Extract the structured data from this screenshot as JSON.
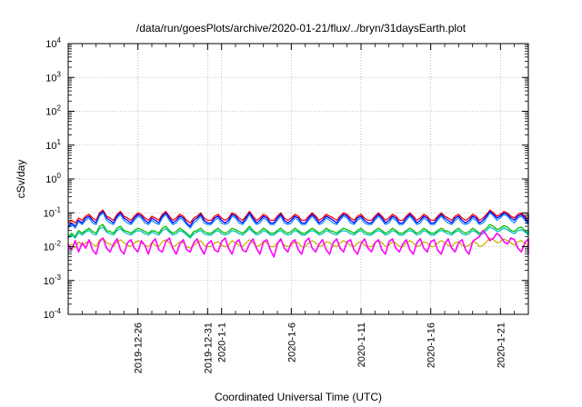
{
  "chart_data": {
    "type": "line",
    "title": "/data/run/goesPlots/archive/2020-01-21/flux/../bryn/31daysEarth.plot",
    "xlabel": "Coordinated Universal Time (UTC)",
    "ylabel": "cSv/day",
    "y_scale": "log",
    "ylim": [
      0.0001,
      10000
    ],
    "xlim": [
      "2019-12-21",
      "2020-01-23"
    ],
    "grid": true,
    "legend": "none",
    "y_ticks": [
      {
        "value": 0.0001,
        "base": "10",
        "exp": "-4"
      },
      {
        "value": 0.001,
        "base": "10",
        "exp": "-3"
      },
      {
        "value": 0.01,
        "base": "10",
        "exp": "-2"
      },
      {
        "value": 0.1,
        "base": "10",
        "exp": "-1"
      },
      {
        "value": 1,
        "base": "10",
        "exp": "0"
      },
      {
        "value": 10,
        "base": "10",
        "exp": "1"
      },
      {
        "value": 100,
        "base": "10",
        "exp": "2"
      },
      {
        "value": 1000,
        "base": "10",
        "exp": "3"
      },
      {
        "value": 10000,
        "base": "10",
        "exp": "4"
      }
    ],
    "x_ticks": [
      {
        "date": "2019-12-26",
        "label": "2019-12-26"
      },
      {
        "date": "2019-12-31",
        "label": "2019-12-31"
      },
      {
        "date": "2020-01-01",
        "label": "2020-1-1"
      },
      {
        "date": "2020-01-06",
        "label": "2020-1-6"
      },
      {
        "date": "2020-01-11",
        "label": "2020-1-11"
      },
      {
        "date": "2020-01-16",
        "label": "2020-1-16"
      },
      {
        "date": "2020-01-21",
        "label": "2020-1-21"
      }
    ],
    "x_minor_tick_dates": [
      "2019-12-22",
      "2019-12-23",
      "2019-12-24",
      "2019-12-25",
      "2019-12-27",
      "2019-12-28",
      "2019-12-29",
      "2019-12-30",
      "2020-01-02",
      "2020-01-03",
      "2020-01-04",
      "2020-01-05",
      "2020-01-07",
      "2020-01-08",
      "2020-01-09",
      "2020-01-10",
      "2020-01-12",
      "2020-01-13",
      "2020-01-14",
      "2020-01-15",
      "2020-01-17",
      "2020-01-18",
      "2020-01-19",
      "2020-01-20",
      "2020-01-22",
      "2020-01-23"
    ],
    "series": [
      {
        "color": "#ff0000",
        "x_start": "2019-12-21",
        "points_per_day": 4,
        "values": [
          0.05,
          0.06,
          0.05,
          0.07,
          0.06,
          0.08,
          0.09,
          0.07,
          0.06,
          0.1,
          0.12,
          0.08,
          0.07,
          0.06,
          0.09,
          0.11,
          0.08,
          0.07,
          0.06,
          0.08,
          0.1,
          0.09,
          0.07,
          0.06,
          0.08,
          0.07,
          0.06,
          0.09,
          0.11,
          0.08,
          0.06,
          0.07,
          0.09,
          0.08,
          0.06,
          0.05,
          0.07,
          0.08,
          0.1,
          0.07,
          0.06,
          0.06,
          0.08,
          0.09,
          0.07,
          0.06,
          0.07,
          0.1,
          0.09,
          0.07,
          0.06,
          0.08,
          0.11,
          0.08,
          0.06,
          0.07,
          0.09,
          0.08,
          0.06,
          0.06,
          0.08,
          0.1,
          0.07,
          0.06,
          0.07,
          0.09,
          0.08,
          0.06,
          0.06,
          0.08,
          0.1,
          0.08,
          0.06,
          0.07,
          0.09,
          0.08,
          0.07,
          0.06,
          0.08,
          0.1,
          0.09,
          0.07,
          0.06,
          0.08,
          0.09,
          0.07,
          0.06,
          0.06,
          0.08,
          0.1,
          0.08,
          0.06,
          0.07,
          0.09,
          0.08,
          0.06,
          0.06,
          0.08,
          0.1,
          0.08,
          0.06,
          0.07,
          0.09,
          0.08,
          0.06,
          0.06,
          0.08,
          0.1,
          0.08,
          0.07,
          0.06,
          0.08,
          0.09,
          0.07,
          0.06,
          0.07,
          0.09,
          0.08,
          0.06,
          0.07,
          0.09,
          0.12,
          0.1,
          0.08,
          0.09,
          0.11,
          0.1,
          0.08,
          0.07,
          0.09,
          0.1,
          0.08,
          0.06,
          0.07,
          0.09,
          0.08,
          0.06,
          0.06,
          0.08,
          0.1,
          0.08
        ]
      },
      {
        "color": "#0000ff",
        "x_start": "2019-12-21",
        "points_per_day": 4,
        "values": [
          0.04,
          0.05,
          0.04,
          0.06,
          0.05,
          0.07,
          0.08,
          0.06,
          0.05,
          0.09,
          0.11,
          0.07,
          0.06,
          0.05,
          0.08,
          0.1,
          0.07,
          0.06,
          0.05,
          0.07,
          0.09,
          0.08,
          0.06,
          0.05,
          0.07,
          0.06,
          0.05,
          0.08,
          0.1,
          0.07,
          0.05,
          0.06,
          0.08,
          0.07,
          0.05,
          0.04,
          0.06,
          0.07,
          0.09,
          0.06,
          0.05,
          0.05,
          0.07,
          0.08,
          0.06,
          0.05,
          0.06,
          0.09,
          0.08,
          0.06,
          0.05,
          0.07,
          0.1,
          0.07,
          0.05,
          0.06,
          0.08,
          0.07,
          0.05,
          0.05,
          0.07,
          0.09,
          0.06,
          0.05,
          0.06,
          0.08,
          0.07,
          0.05,
          0.05,
          0.07,
          0.09,
          0.07,
          0.05,
          0.06,
          0.08,
          0.07,
          0.06,
          0.05,
          0.07,
          0.09,
          0.08,
          0.06,
          0.05,
          0.07,
          0.08,
          0.06,
          0.05,
          0.05,
          0.07,
          0.09,
          0.07,
          0.05,
          0.06,
          0.08,
          0.07,
          0.05,
          0.05,
          0.07,
          0.09,
          0.07,
          0.05,
          0.06,
          0.08,
          0.07,
          0.05,
          0.05,
          0.07,
          0.09,
          0.07,
          0.06,
          0.05,
          0.07,
          0.08,
          0.06,
          0.05,
          0.06,
          0.08,
          0.07,
          0.05,
          0.06,
          0.08,
          0.11,
          0.09,
          0.07,
          0.08,
          0.1,
          0.09,
          0.07,
          0.06,
          0.08,
          0.09,
          0.07,
          0.05,
          0.06,
          0.08,
          0.07,
          0.05,
          0.05,
          0.07,
          0.09,
          0.07
        ]
      },
      {
        "color": "#1e90ff",
        "x_start": "2019-12-21",
        "points_per_day": 4,
        "values": [
          0.035,
          0.045,
          0.035,
          0.055,
          0.045,
          0.06,
          0.07,
          0.05,
          0.045,
          0.08,
          0.1,
          0.06,
          0.05,
          0.045,
          0.07,
          0.09,
          0.06,
          0.05,
          0.045,
          0.06,
          0.08,
          0.07,
          0.05,
          0.045,
          0.06,
          0.05,
          0.045,
          0.07,
          0.09,
          0.06,
          0.045,
          0.05,
          0.07,
          0.06,
          0.045,
          0.035,
          0.05,
          0.06,
          0.08,
          0.05,
          0.045,
          0.045,
          0.06,
          0.07,
          0.05,
          0.045,
          0.05,
          0.08,
          0.07,
          0.05,
          0.045,
          0.06,
          0.09,
          0.06,
          0.045,
          0.05,
          0.07,
          0.06,
          0.045,
          0.045,
          0.06,
          0.08,
          0.05,
          0.045,
          0.05,
          0.07,
          0.06,
          0.045,
          0.045,
          0.06,
          0.08,
          0.06,
          0.045,
          0.05,
          0.07,
          0.06,
          0.05,
          0.045,
          0.06,
          0.08,
          0.07,
          0.05,
          0.045,
          0.06,
          0.07,
          0.05,
          0.045,
          0.045,
          0.06,
          0.08,
          0.06,
          0.045,
          0.05,
          0.07,
          0.06,
          0.045,
          0.045,
          0.06,
          0.08,
          0.06,
          0.045,
          0.05,
          0.07,
          0.06,
          0.045,
          0.045,
          0.06,
          0.08,
          0.06,
          0.05,
          0.045,
          0.06,
          0.07,
          0.05,
          0.045,
          0.05,
          0.07,
          0.06,
          0.045,
          0.05,
          0.07,
          0.1,
          0.08,
          0.06,
          0.07,
          0.09,
          0.08,
          0.06,
          0.05,
          0.07,
          0.08,
          0.06,
          0.045,
          0.05,
          0.07,
          0.06,
          0.045,
          0.045,
          0.06,
          0.08,
          0.06
        ]
      },
      {
        "color": "#00c000",
        "x_start": "2019-12-21",
        "points_per_day": 4,
        "values": [
          0.02,
          0.025,
          0.02,
          0.03,
          0.025,
          0.03,
          0.035,
          0.028,
          0.025,
          0.04,
          0.045,
          0.03,
          0.028,
          0.025,
          0.035,
          0.04,
          0.03,
          0.028,
          0.025,
          0.03,
          0.035,
          0.032,
          0.028,
          0.025,
          0.03,
          0.028,
          0.025,
          0.035,
          0.04,
          0.03,
          0.025,
          0.028,
          0.035,
          0.03,
          0.025,
          0.02,
          0.028,
          0.03,
          0.035,
          0.028,
          0.025,
          0.025,
          0.03,
          0.035,
          0.028,
          0.025,
          0.028,
          0.035,
          0.032,
          0.028,
          0.025,
          0.03,
          0.04,
          0.03,
          0.025,
          0.028,
          0.035,
          0.03,
          0.025,
          0.025,
          0.03,
          0.035,
          0.028,
          0.025,
          0.028,
          0.035,
          0.03,
          0.025,
          0.025,
          0.03,
          0.035,
          0.03,
          0.025,
          0.028,
          0.035,
          0.03,
          0.028,
          0.025,
          0.03,
          0.035,
          0.032,
          0.028,
          0.025,
          0.03,
          0.035,
          0.028,
          0.025,
          0.025,
          0.03,
          0.035,
          0.03,
          0.025,
          0.028,
          0.035,
          0.03,
          0.025,
          0.025,
          0.03,
          0.035,
          0.03,
          0.025,
          0.028,
          0.035,
          0.03,
          0.025,
          0.025,
          0.03,
          0.035,
          0.03,
          0.028,
          0.025,
          0.03,
          0.035,
          0.028,
          0.025,
          0.028,
          0.035,
          0.03,
          0.025,
          0.028,
          0.035,
          0.045,
          0.04,
          0.032,
          0.035,
          0.042,
          0.038,
          0.03,
          0.028,
          0.035,
          0.038,
          0.03,
          0.025,
          0.028,
          0.035,
          0.03,
          0.025,
          0.025,
          0.03,
          0.035,
          0.03
        ]
      },
      {
        "color": "#00bfbf",
        "x_start": "2019-12-21",
        "points_per_day": 4,
        "values": [
          0.018,
          0.022,
          0.018,
          0.026,
          0.022,
          0.027,
          0.03,
          0.024,
          0.022,
          0.034,
          0.038,
          0.027,
          0.024,
          0.022,
          0.03,
          0.034,
          0.027,
          0.024,
          0.022,
          0.027,
          0.03,
          0.028,
          0.024,
          0.022,
          0.027,
          0.024,
          0.022,
          0.03,
          0.034,
          0.027,
          0.022,
          0.024,
          0.03,
          0.027,
          0.022,
          0.018,
          0.024,
          0.027,
          0.03,
          0.024,
          0.022,
          0.022,
          0.027,
          0.03,
          0.024,
          0.022,
          0.024,
          0.03,
          0.028,
          0.024,
          0.022,
          0.027,
          0.034,
          0.027,
          0.022,
          0.024,
          0.03,
          0.027,
          0.022,
          0.022,
          0.027,
          0.03,
          0.024,
          0.022,
          0.024,
          0.03,
          0.027,
          0.022,
          0.022,
          0.027,
          0.03,
          0.027,
          0.022,
          0.024,
          0.03,
          0.027,
          0.024,
          0.022,
          0.027,
          0.03,
          0.028,
          0.024,
          0.022,
          0.027,
          0.03,
          0.024,
          0.022,
          0.022,
          0.027,
          0.03,
          0.027,
          0.022,
          0.024,
          0.03,
          0.027,
          0.022,
          0.022,
          0.027,
          0.03,
          0.027,
          0.022,
          0.024,
          0.03,
          0.027,
          0.022,
          0.022,
          0.027,
          0.03,
          0.027,
          0.024,
          0.022,
          0.027,
          0.03,
          0.024,
          0.022,
          0.024,
          0.03,
          0.027,
          0.022,
          0.024,
          0.03,
          0.038,
          0.034,
          0.028,
          0.03,
          0.036,
          0.032,
          0.027,
          0.024,
          0.03,
          0.032,
          0.027,
          0.022,
          0.024,
          0.03,
          0.027,
          0.022,
          0.022,
          0.027,
          0.03,
          0.027
        ]
      },
      {
        "color": "#c8b400",
        "x_start": "2019-12-21",
        "points_per_day": 4,
        "values": [
          0.01,
          0.012,
          0.009,
          0.014,
          0.011,
          0.013,
          0.015,
          0.012,
          0.01,
          0.016,
          0.018,
          0.013,
          0.012,
          0.01,
          0.014,
          0.016,
          0.013,
          0.011,
          0.01,
          0.013,
          0.015,
          0.013,
          0.011,
          0.01,
          0.013,
          0.011,
          0.01,
          0.014,
          0.016,
          0.013,
          0.01,
          0.011,
          0.014,
          0.013,
          0.01,
          0.009,
          0.011,
          0.013,
          0.015,
          0.011,
          0.01,
          0.01,
          0.013,
          0.014,
          0.011,
          0.01,
          0.011,
          0.015,
          0.013,
          0.011,
          0.01,
          0.013,
          0.016,
          0.013,
          0.01,
          0.011,
          0.014,
          0.013,
          0.01,
          0.01,
          0.013,
          0.015,
          0.011,
          0.01,
          0.011,
          0.014,
          0.013,
          0.01,
          0.01,
          0.013,
          0.015,
          0.013,
          0.01,
          0.011,
          0.014,
          0.013,
          0.011,
          0.01,
          0.013,
          0.015,
          0.013,
          0.011,
          0.01,
          0.013,
          0.014,
          0.011,
          0.01,
          0.01,
          0.013,
          0.015,
          0.013,
          0.01,
          0.011,
          0.014,
          0.013,
          0.01,
          0.01,
          0.013,
          0.015,
          0.013,
          0.01,
          0.011,
          0.014,
          0.013,
          0.01,
          0.01,
          0.013,
          0.015,
          0.013,
          0.011,
          0.01,
          0.013,
          0.014,
          0.011,
          0.01,
          0.011,
          0.014,
          0.013,
          0.01,
          0.011,
          0.014,
          0.018,
          0.016,
          0.013,
          0.014,
          0.017,
          0.015,
          0.013,
          0.011,
          0.014,
          0.015,
          0.013,
          0.01,
          0.011,
          0.014,
          0.013,
          0.01,
          0.01,
          0.013,
          0.015,
          0.013
        ]
      },
      {
        "color": "#ff00ff",
        "x_start": "2019-12-21",
        "points_per_day": 4,
        "values": [
          0.012,
          0.008,
          0.015,
          0.007,
          0.013,
          0.009,
          0.016,
          0.008,
          0.006,
          0.014,
          0.018,
          0.009,
          0.007,
          0.012,
          0.017,
          0.008,
          0.006,
          0.013,
          0.016,
          0.009,
          0.007,
          0.015,
          0.011,
          0.006,
          0.013,
          0.017,
          0.008,
          0.007,
          0.014,
          0.018,
          0.009,
          0.006,
          0.012,
          0.016,
          0.008,
          0.007,
          0.013,
          0.017,
          0.009,
          0.006,
          0.012,
          0.015,
          0.008,
          0.007,
          0.014,
          0.018,
          0.009,
          0.006,
          0.013,
          0.016,
          0.008,
          0.007,
          0.012,
          0.017,
          0.009,
          0.006,
          0.014,
          0.016,
          0.008,
          0.005,
          0.012,
          0.017,
          0.009,
          0.007,
          0.013,
          0.016,
          0.008,
          0.006,
          0.014,
          0.018,
          0.009,
          0.007,
          0.012,
          0.016,
          0.008,
          0.006,
          0.013,
          0.017,
          0.009,
          0.007,
          0.014,
          0.016,
          0.008,
          0.006,
          0.012,
          0.017,
          0.009,
          0.007,
          0.013,
          0.016,
          0.008,
          0.006,
          0.014,
          0.017,
          0.009,
          0.007,
          0.012,
          0.016,
          0.008,
          0.006,
          0.013,
          0.017,
          0.009,
          0.007,
          0.014,
          0.016,
          0.008,
          0.006,
          0.012,
          0.017,
          0.009,
          0.007,
          0.013,
          0.016,
          0.008,
          0.006,
          0.014,
          0.017,
          0.02,
          0.03,
          0.022,
          0.015,
          0.018,
          0.025,
          0.02,
          0.014,
          0.012,
          0.018,
          0.016,
          0.009,
          0.007,
          0.013,
          0.017,
          0.008,
          0.006,
          0.014,
          0.016,
          0.009,
          0.007
        ]
      }
    ]
  }
}
